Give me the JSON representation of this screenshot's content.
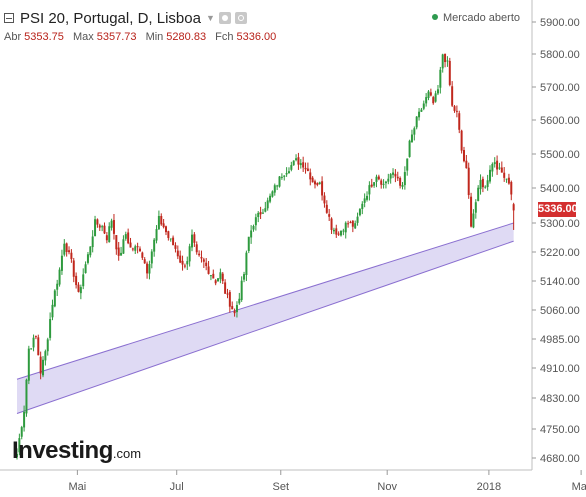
{
  "header": {
    "title": "PSI 20, Portugal, D, Lisboa",
    "market_status": "Mercado aberto",
    "ohlc": [
      {
        "key": "Abr",
        "value": "5353.75"
      },
      {
        "key": "Max",
        "value": "5357.73"
      },
      {
        "key": "Min",
        "value": "5280.83"
      },
      {
        "key": "Fch",
        "value": "5336.00"
      }
    ]
  },
  "current_price_label": "5336.00",
  "logo_text": "Investing",
  "logo_suffix": ".com",
  "colors": {
    "up": "#2e9a3e",
    "down": "#c0271d",
    "channel_fill": "#d9d4f2",
    "channel_line": "#8a6fd0",
    "price_tag": "#d32f2f"
  },
  "chart_data": {
    "type": "candlestick",
    "title": "PSI 20, Portugal, D, Lisboa",
    "x_tick_labels": [
      "Mai",
      "Jul",
      "Set",
      "Nov",
      "2018",
      "Mar"
    ],
    "x_tick_index": [
      12,
      54,
      98,
      143,
      186,
      225
    ],
    "y_tick_labels": [
      "4680.00",
      "4750.00",
      "4830.00",
      "4910.00",
      "4985.00",
      "5060.00",
      "5140.00",
      "5220.00",
      "5300.00",
      "5400.00",
      "5500.00",
      "5600.00",
      "5700.00",
      "5800.00",
      "5900.00"
    ],
    "y_tick_values": [
      4680,
      4750,
      4830,
      4910,
      4985,
      5060,
      5140,
      5220,
      5300,
      5400,
      5500,
      5600,
      5700,
      5800,
      5900
    ],
    "price_mapping": {
      "pairs": [
        [
          4680,
          4680
        ],
        [
          4750,
          4750
        ],
        [
          4830,
          4830
        ],
        [
          4910,
          4910
        ],
        [
          4985,
          4985
        ],
        [
          5060,
          5060
        ],
        [
          5140,
          5140
        ],
        [
          5220,
          5220
        ],
        [
          5300,
          5300
        ],
        [
          5400,
          5400
        ],
        [
          5500,
          5500
        ],
        [
          5600,
          5600
        ],
        [
          5700,
          5700
        ],
        [
          5800,
          5800
        ],
        [
          5900,
          5900
        ]
      ],
      "note_pairs": "axis label to axis position anchors"
    },
    "close_anchors": [
      [
        0,
        4690
      ],
      [
        3,
        4800
      ],
      [
        5,
        4960
      ],
      [
        8,
        4990
      ],
      [
        10,
        4900
      ],
      [
        12,
        4950
      ],
      [
        15,
        5080
      ],
      [
        18,
        5170
      ],
      [
        20,
        5250
      ],
      [
        23,
        5190
      ],
      [
        26,
        5100
      ],
      [
        28,
        5160
      ],
      [
        30,
        5210
      ],
      [
        33,
        5300
      ],
      [
        36,
        5290
      ],
      [
        38,
        5260
      ],
      [
        40,
        5310
      ],
      [
        43,
        5200
      ],
      [
        46,
        5270
      ],
      [
        48,
        5230
      ],
      [
        52,
        5230
      ],
      [
        55,
        5170
      ],
      [
        58,
        5250
      ],
      [
        60,
        5310
      ],
      [
        62,
        5290
      ],
      [
        64,
        5260
      ],
      [
        67,
        5230
      ],
      [
        70,
        5180
      ],
      [
        72,
        5200
      ],
      [
        74,
        5260
      ],
      [
        76,
        5210
      ],
      [
        79,
        5190
      ],
      [
        81,
        5170
      ],
      [
        84,
        5140
      ],
      [
        86,
        5160
      ],
      [
        88,
        5110
      ],
      [
        90,
        5080
      ],
      [
        92,
        5050
      ],
      [
        94,
        5100
      ],
      [
        96,
        5160
      ],
      [
        98,
        5260
      ],
      [
        100,
        5300
      ],
      [
        103,
        5330
      ],
      [
        106,
        5360
      ],
      [
        109,
        5400
      ],
      [
        112,
        5440
      ],
      [
        115,
        5460
      ],
      [
        118,
        5480
      ],
      [
        121,
        5470
      ],
      [
        123,
        5450
      ],
      [
        125,
        5420
      ],
      [
        128,
        5410
      ],
      [
        131,
        5340
      ],
      [
        133,
        5290
      ],
      [
        136,
        5270
      ],
      [
        138,
        5290
      ],
      [
        140,
        5300
      ],
      [
        143,
        5290
      ],
      [
        146,
        5360
      ],
      [
        149,
        5400
      ],
      [
        152,
        5440
      ],
      [
        155,
        5410
      ],
      [
        158,
        5440
      ],
      [
        161,
        5430
      ],
      [
        163,
        5400
      ],
      [
        166,
        5530
      ],
      [
        169,
        5600
      ],
      [
        172,
        5650
      ],
      [
        174,
        5680
      ],
      [
        176,
        5650
      ],
      [
        178,
        5690
      ],
      [
        180,
        5800
      ],
      [
        182,
        5770
      ],
      [
        184,
        5640
      ],
      [
        186,
        5620
      ],
      [
        188,
        5510
      ],
      [
        190,
        5450
      ],
      [
        192,
        5300
      ],
      [
        194,
        5360
      ],
      [
        196,
        5420
      ],
      [
        198,
        5400
      ],
      [
        200,
        5460
      ],
      [
        202,
        5480
      ],
      [
        204,
        5450
      ],
      [
        206,
        5440
      ],
      [
        208,
        5420
      ],
      [
        210,
        5336
      ]
    ],
    "ylim": [
      4640,
      5930
    ],
    "channel": {
      "lower": [
        [
          0,
          4790
        ],
        [
          210,
          5250
        ]
      ],
      "upper": [
        [
          0,
          4880
        ],
        [
          210,
          5300
        ]
      ]
    },
    "last_close": 5336.0,
    "last_ohlc": {
      "open": 5353.75,
      "high": 5357.73,
      "low": 5280.83,
      "close": 5336.0
    },
    "grid": false,
    "legend": "none"
  }
}
